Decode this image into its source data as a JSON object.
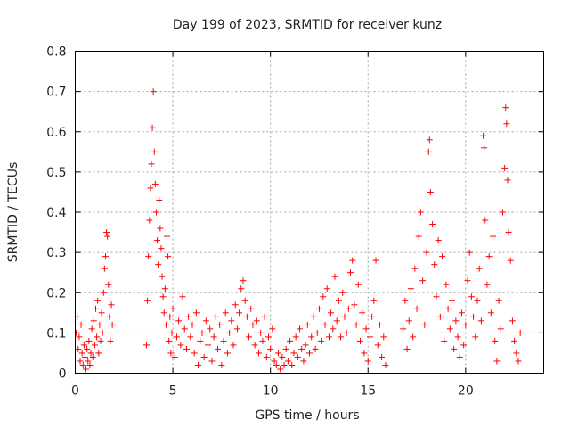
{
  "chart_data": {
    "type": "scatter",
    "title": "Day 199 of 2023, SRMTID for receiver kunz",
    "xlabel": "GPS time / hours",
    "ylabel": "SRMTID / TECUs",
    "xlim": [
      0,
      24
    ],
    "ylim": [
      0,
      0.8
    ],
    "xticks": [
      0,
      5,
      10,
      15,
      20
    ],
    "yticks": [
      0,
      0.1,
      0.2,
      0.3,
      0.4,
      0.5,
      0.6,
      0.7,
      0.8
    ],
    "xtick_labels": [
      "0",
      "5",
      "10",
      "15",
      "20"
    ],
    "ytick_labels": [
      "0",
      "0.1",
      "0.2",
      "0.3",
      "0.4",
      "0.5",
      "0.6",
      "0.7",
      "0.8"
    ],
    "grid": true,
    "marker": "+",
    "color": "#ff0000",
    "series": [
      {
        "name": "SRMTID",
        "points": [
          [
            0.05,
            0.1
          ],
          [
            0.1,
            0.14
          ],
          [
            0.15,
            0.06
          ],
          [
            0.2,
            0.09
          ],
          [
            0.25,
            0.03
          ],
          [
            0.3,
            0.12
          ],
          [
            0.35,
            0.05
          ],
          [
            0.4,
            0.02
          ],
          [
            0.45,
            0.07
          ],
          [
            0.5,
            0.04
          ],
          [
            0.55,
            0.01
          ],
          [
            0.6,
            0.06
          ],
          [
            0.65,
            0.03
          ],
          [
            0.7,
            0.08
          ],
          [
            0.75,
            0.02
          ],
          [
            0.8,
            0.05
          ],
          [
            0.85,
            0.11
          ],
          [
            0.9,
            0.04
          ],
          [
            0.95,
            0.13
          ],
          [
            1.0,
            0.07
          ],
          [
            1.05,
            0.16
          ],
          [
            1.1,
            0.09
          ],
          [
            1.15,
            0.18
          ],
          [
            1.2,
            0.05
          ],
          [
            1.25,
            0.12
          ],
          [
            1.3,
            0.08
          ],
          [
            1.35,
            0.15
          ],
          [
            1.4,
            0.1
          ],
          [
            1.45,
            0.2
          ],
          [
            1.5,
            0.26
          ],
          [
            1.55,
            0.29
          ],
          [
            1.6,
            0.35
          ],
          [
            1.65,
            0.34
          ],
          [
            1.7,
            0.22
          ],
          [
            1.75,
            0.14
          ],
          [
            1.8,
            0.08
          ],
          [
            1.85,
            0.17
          ],
          [
            1.9,
            0.12
          ],
          [
            3.65,
            0.07
          ],
          [
            3.7,
            0.18
          ],
          [
            3.75,
            0.29
          ],
          [
            3.8,
            0.38
          ],
          [
            3.85,
            0.46
          ],
          [
            3.9,
            0.52
          ],
          [
            3.95,
            0.61
          ],
          [
            4.0,
            0.7
          ],
          [
            4.05,
            0.55
          ],
          [
            4.1,
            0.47
          ],
          [
            4.15,
            0.4
          ],
          [
            4.2,
            0.33
          ],
          [
            4.25,
            0.27
          ],
          [
            4.3,
            0.43
          ],
          [
            4.35,
            0.36
          ],
          [
            4.4,
            0.31
          ],
          [
            4.45,
            0.24
          ],
          [
            4.5,
            0.19
          ],
          [
            4.55,
            0.15
          ],
          [
            4.6,
            0.21
          ],
          [
            4.65,
            0.12
          ],
          [
            4.7,
            0.34
          ],
          [
            4.75,
            0.29
          ],
          [
            4.8,
            0.08
          ],
          [
            4.85,
            0.14
          ],
          [
            4.9,
            0.05
          ],
          [
            4.95,
            0.1
          ],
          [
            5.0,
            0.16
          ],
          [
            5.1,
            0.04
          ],
          [
            5.2,
            0.09
          ],
          [
            5.3,
            0.13
          ],
          [
            5.4,
            0.07
          ],
          [
            5.5,
            0.19
          ],
          [
            5.6,
            0.11
          ],
          [
            5.7,
            0.06
          ],
          [
            5.8,
            0.14
          ],
          [
            5.9,
            0.09
          ],
          [
            6.0,
            0.12
          ],
          [
            6.1,
            0.05
          ],
          [
            6.2,
            0.15
          ],
          [
            6.3,
            0.02
          ],
          [
            6.4,
            0.08
          ],
          [
            6.5,
            0.1
          ],
          [
            6.6,
            0.04
          ],
          [
            6.7,
            0.13
          ],
          [
            6.8,
            0.07
          ],
          [
            6.9,
            0.11
          ],
          [
            7.0,
            0.03
          ],
          [
            7.1,
            0.09
          ],
          [
            7.2,
            0.14
          ],
          [
            7.3,
            0.06
          ],
          [
            7.4,
            0.12
          ],
          [
            7.5,
            0.02
          ],
          [
            7.6,
            0.08
          ],
          [
            7.7,
            0.15
          ],
          [
            7.8,
            0.05
          ],
          [
            7.9,
            0.1
          ],
          [
            8.0,
            0.13
          ],
          [
            8.1,
            0.07
          ],
          [
            8.2,
            0.17
          ],
          [
            8.3,
            0.11
          ],
          [
            8.4,
            0.15
          ],
          [
            8.5,
            0.21
          ],
          [
            8.6,
            0.23
          ],
          [
            8.7,
            0.18
          ],
          [
            8.8,
            0.14
          ],
          [
            8.9,
            0.09
          ],
          [
            9.0,
            0.16
          ],
          [
            9.1,
            0.12
          ],
          [
            9.2,
            0.07
          ],
          [
            9.3,
            0.13
          ],
          [
            9.4,
            0.05
          ],
          [
            9.5,
            0.1
          ],
          [
            9.6,
            0.08
          ],
          [
            9.7,
            0.14
          ],
          [
            9.8,
            0.04
          ],
          [
            9.9,
            0.09
          ],
          [
            10.0,
            0.06
          ],
          [
            10.1,
            0.11
          ],
          [
            10.2,
            0.03
          ],
          [
            10.3,
            0.02
          ],
          [
            10.4,
            0.05
          ],
          [
            10.5,
            0.01
          ],
          [
            10.6,
            0.04
          ],
          [
            10.7,
            0.02
          ],
          [
            10.8,
            0.06
          ],
          [
            10.9,
            0.03
          ],
          [
            11.0,
            0.08
          ],
          [
            11.1,
            0.02
          ],
          [
            11.2,
            0.05
          ],
          [
            11.3,
            0.09
          ],
          [
            11.4,
            0.04
          ],
          [
            11.5,
            0.11
          ],
          [
            11.6,
            0.06
          ],
          [
            11.7,
            0.03
          ],
          [
            11.8,
            0.07
          ],
          [
            11.9,
            0.12
          ],
          [
            12.0,
            0.05
          ],
          [
            12.1,
            0.09
          ],
          [
            12.2,
            0.14
          ],
          [
            12.3,
            0.06
          ],
          [
            12.4,
            0.1
          ],
          [
            12.5,
            0.16
          ],
          [
            12.6,
            0.08
          ],
          [
            12.7,
            0.19
          ],
          [
            12.8,
            0.12
          ],
          [
            12.9,
            0.21
          ],
          [
            13.0,
            0.09
          ],
          [
            13.1,
            0.15
          ],
          [
            13.2,
            0.11
          ],
          [
            13.3,
            0.24
          ],
          [
            13.4,
            0.13
          ],
          [
            13.5,
            0.18
          ],
          [
            13.6,
            0.09
          ],
          [
            13.7,
            0.2
          ],
          [
            13.8,
            0.14
          ],
          [
            13.9,
            0.1
          ],
          [
            14.0,
            0.16
          ],
          [
            14.1,
            0.25
          ],
          [
            14.2,
            0.28
          ],
          [
            14.3,
            0.17
          ],
          [
            14.4,
            0.12
          ],
          [
            14.5,
            0.22
          ],
          [
            14.6,
            0.08
          ],
          [
            14.7,
            0.15
          ],
          [
            14.8,
            0.05
          ],
          [
            14.9,
            0.11
          ],
          [
            15.0,
            0.03
          ],
          [
            15.1,
            0.09
          ],
          [
            15.2,
            0.14
          ],
          [
            15.3,
            0.18
          ],
          [
            15.4,
            0.28
          ],
          [
            15.5,
            0.07
          ],
          [
            15.6,
            0.12
          ],
          [
            15.7,
            0.04
          ],
          [
            15.8,
            0.09
          ],
          [
            15.9,
            0.02
          ],
          [
            16.8,
            0.11
          ],
          [
            16.9,
            0.18
          ],
          [
            17.0,
            0.06
          ],
          [
            17.1,
            0.13
          ],
          [
            17.2,
            0.21
          ],
          [
            17.3,
            0.09
          ],
          [
            17.4,
            0.26
          ],
          [
            17.5,
            0.16
          ],
          [
            17.6,
            0.34
          ],
          [
            17.7,
            0.4
          ],
          [
            17.8,
            0.23
          ],
          [
            17.9,
            0.12
          ],
          [
            18.0,
            0.3
          ],
          [
            18.1,
            0.55
          ],
          [
            18.15,
            0.58
          ],
          [
            18.2,
            0.45
          ],
          [
            18.3,
            0.37
          ],
          [
            18.4,
            0.27
          ],
          [
            18.5,
            0.19
          ],
          [
            18.6,
            0.33
          ],
          [
            18.7,
            0.14
          ],
          [
            18.8,
            0.29
          ],
          [
            18.9,
            0.08
          ],
          [
            19.0,
            0.22
          ],
          [
            19.1,
            0.16
          ],
          [
            19.2,
            0.11
          ],
          [
            19.3,
            0.18
          ],
          [
            19.4,
            0.06
          ],
          [
            19.5,
            0.13
          ],
          [
            19.6,
            0.09
          ],
          [
            19.7,
            0.04
          ],
          [
            19.8,
            0.15
          ],
          [
            19.9,
            0.07
          ],
          [
            20.0,
            0.12
          ],
          [
            20.1,
            0.23
          ],
          [
            20.2,
            0.3
          ],
          [
            20.3,
            0.19
          ],
          [
            20.4,
            0.14
          ],
          [
            20.5,
            0.09
          ],
          [
            20.6,
            0.18
          ],
          [
            20.7,
            0.26
          ],
          [
            20.8,
            0.13
          ],
          [
            20.9,
            0.59
          ],
          [
            20.95,
            0.56
          ],
          [
            21.0,
            0.38
          ],
          [
            21.1,
            0.22
          ],
          [
            21.2,
            0.29
          ],
          [
            21.3,
            0.15
          ],
          [
            21.4,
            0.34
          ],
          [
            21.5,
            0.08
          ],
          [
            21.6,
            0.03
          ],
          [
            21.7,
            0.18
          ],
          [
            21.8,
            0.11
          ],
          [
            21.9,
            0.4
          ],
          [
            22.0,
            0.51
          ],
          [
            22.05,
            0.66
          ],
          [
            22.1,
            0.62
          ],
          [
            22.15,
            0.48
          ],
          [
            22.2,
            0.35
          ],
          [
            22.3,
            0.28
          ],
          [
            22.4,
            0.13
          ],
          [
            22.5,
            0.08
          ],
          [
            22.6,
            0.05
          ],
          [
            22.7,
            0.03
          ],
          [
            22.8,
            0.1
          ]
        ]
      }
    ]
  }
}
